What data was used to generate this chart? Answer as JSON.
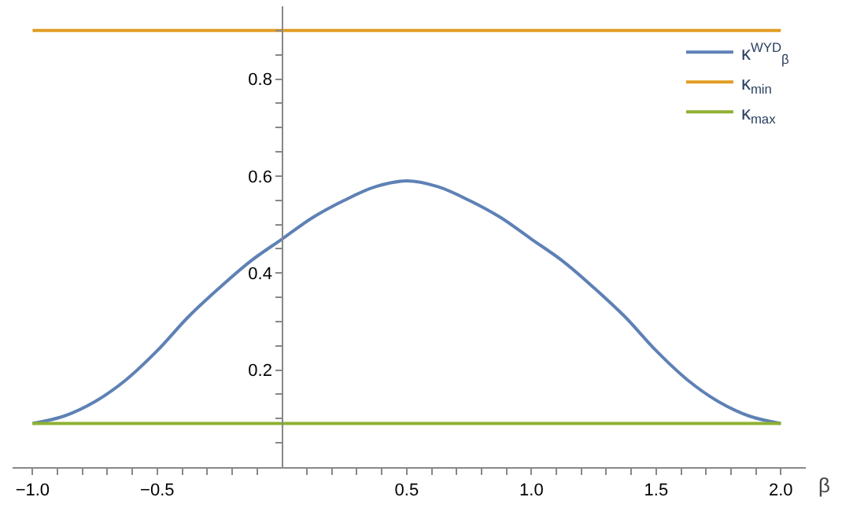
{
  "chart_data": {
    "type": "line",
    "xlabel": "β",
    "x": [
      -1,
      -0.875,
      -0.75,
      -0.625,
      -0.5,
      -0.375,
      -0.25,
      -0.125,
      0,
      0.125,
      0.25,
      0.375,
      0.5,
      0.625,
      0.75,
      0.875,
      1,
      1.125,
      1.25,
      1.375,
      1.5,
      1.625,
      1.75,
      1.875,
      2
    ],
    "series": [
      {
        "name": "κ$^{WYD}$$_{β}$",
        "color": "#5e81b5",
        "values": [
          0.09,
          0.105,
          0.135,
          0.18,
          0.24,
          0.31,
          0.37,
          0.425,
          0.47,
          0.515,
          0.55,
          0.578,
          0.59,
          0.578,
          0.55,
          0.515,
          0.47,
          0.425,
          0.37,
          0.31,
          0.24,
          0.18,
          0.135,
          0.105,
          0.09
        ]
      },
      {
        "name": "κ$_{min}$",
        "color": "#e19c24",
        "values": [
          0.9,
          0.9,
          0.9,
          0.9,
          0.9,
          0.9,
          0.9,
          0.9,
          0.9,
          0.9,
          0.9,
          0.9,
          0.9,
          0.9,
          0.9,
          0.9,
          0.9,
          0.9,
          0.9,
          0.9,
          0.9,
          0.9,
          0.9,
          0.9,
          0.9
        ]
      },
      {
        "name": "κ$_{max}$",
        "color": "#8fb131",
        "values": [
          0.09,
          0.09,
          0.09,
          0.09,
          0.09,
          0.09,
          0.09,
          0.09,
          0.09,
          0.09,
          0.09,
          0.09,
          0.09,
          0.09,
          0.09,
          0.09,
          0.09,
          0.09,
          0.09,
          0.09,
          0.09,
          0.09,
          0.09,
          0.09,
          0.09
        ]
      }
    ],
    "xlim": [
      -1.08,
      2.1
    ],
    "ylim": [
      0,
      0.95
    ],
    "xticks": [
      {
        "value": -1,
        "label": "−1.0"
      },
      {
        "value": -0.5,
        "label": "−0.5"
      },
      {
        "value": 0.5,
        "label": "0.5"
      },
      {
        "value": 1,
        "label": "1.0"
      },
      {
        "value": 1.5,
        "label": "1.5"
      },
      {
        "value": 2,
        "label": "2.0"
      },
      {
        "value": -0.9,
        "label": null
      },
      {
        "value": -0.8,
        "label": null
      },
      {
        "value": -0.7,
        "label": null
      },
      {
        "value": -0.6,
        "label": null
      },
      {
        "value": -0.4,
        "label": null
      },
      {
        "value": -0.3,
        "label": null
      },
      {
        "value": -0.2,
        "label": null
      },
      {
        "value": -0.1,
        "label": null
      },
      {
        "value": 0.1,
        "label": null
      },
      {
        "value": 0.2,
        "label": null
      },
      {
        "value": 0.3,
        "label": null
      },
      {
        "value": 0.4,
        "label": null
      },
      {
        "value": 0.6,
        "label": null
      },
      {
        "value": 0.7,
        "label": null
      },
      {
        "value": 0.8,
        "label": null
      },
      {
        "value": 0.9,
        "label": null
      },
      {
        "value": 1.1,
        "label": null
      },
      {
        "value": 1.2,
        "label": null
      },
      {
        "value": 1.3,
        "label": null
      },
      {
        "value": 1.4,
        "label": null
      },
      {
        "value": 1.6,
        "label": null
      },
      {
        "value": 1.7,
        "label": null
      },
      {
        "value": 1.8,
        "label": null
      },
      {
        "value": 1.9,
        "label": null
      }
    ],
    "yticks": [
      {
        "value": 0.2,
        "label": "0.2"
      },
      {
        "value": 0.4,
        "label": "0.4"
      },
      {
        "value": 0.6,
        "label": "0.6"
      },
      {
        "value": 0.8,
        "label": "0.8"
      },
      {
        "value": 0.05,
        "label": null
      },
      {
        "value": 0.1,
        "label": null
      },
      {
        "value": 0.15,
        "label": null
      },
      {
        "value": 0.25,
        "label": null
      },
      {
        "value": 0.3,
        "label": null
      },
      {
        "value": 0.35,
        "label": null
      },
      {
        "value": 0.45,
        "label": null
      },
      {
        "value": 0.5,
        "label": null
      },
      {
        "value": 0.55,
        "label": null
      },
      {
        "value": 0.65,
        "label": null
      },
      {
        "value": 0.7,
        "label": null
      },
      {
        "value": 0.75,
        "label": null
      },
      {
        "value": 0.85,
        "label": null
      },
      {
        "value": 0.9,
        "label": null
      }
    ],
    "legend": "top right",
    "marker": "none",
    "line_style": "solid"
  }
}
